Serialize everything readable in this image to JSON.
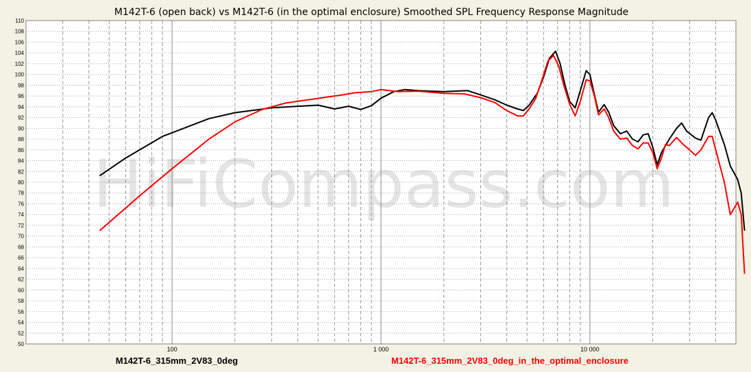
{
  "chart_data": {
    "type": "line",
    "title": "M142T-6 (open back)  vs  M142T-6 (in the optimal enclosure)     Smoothed SPL Frequency Response Magnitude",
    "watermark": "HiFiCompass.com",
    "xscale": "log",
    "xlim": [
      20,
      50000
    ],
    "ylim": [
      50,
      110
    ],
    "yticks": [
      50,
      52,
      54,
      56,
      58,
      60,
      62,
      64,
      66,
      68,
      70,
      72,
      74,
      76,
      78,
      80,
      82,
      84,
      86,
      88,
      90,
      92,
      94,
      96,
      98,
      100,
      102,
      104,
      106,
      108,
      110
    ],
    "xtick_labels": [
      {
        "value": 100,
        "label": "100"
      },
      {
        "value": 1000,
        "label": "1 000"
      },
      {
        "value": 10000,
        "label": "10 000"
      }
    ],
    "grid": true,
    "legend_position": "bottom",
    "series": [
      {
        "name": "M142T-6_315mm_2V83_0deg",
        "color": "#000000",
        "points": [
          [
            45,
            81.2
          ],
          [
            60,
            84.5
          ],
          [
            90,
            88.5
          ],
          [
            150,
            91.8
          ],
          [
            200,
            92.9
          ],
          [
            300,
            93.8
          ],
          [
            400,
            94.1
          ],
          [
            500,
            94.3
          ],
          [
            600,
            93.6
          ],
          [
            700,
            94.1
          ],
          [
            800,
            93.5
          ],
          [
            900,
            94.2
          ],
          [
            1000,
            95.6
          ],
          [
            1150,
            96.8
          ],
          [
            1300,
            97.2
          ],
          [
            1500,
            97.0
          ],
          [
            2000,
            96.8
          ],
          [
            2600,
            97.0
          ],
          [
            3000,
            96.2
          ],
          [
            3500,
            95.3
          ],
          [
            4000,
            94.3
          ],
          [
            4500,
            93.6
          ],
          [
            4800,
            93.3
          ],
          [
            5100,
            94.2
          ],
          [
            5600,
            96.5
          ],
          [
            6000,
            99.5
          ],
          [
            6400,
            103.0
          ],
          [
            6850,
            104.3
          ],
          [
            7200,
            102.0
          ],
          [
            7600,
            98.0
          ],
          [
            8000,
            95.0
          ],
          [
            8500,
            93.8
          ],
          [
            9000,
            97.0
          ],
          [
            9600,
            100.7
          ],
          [
            10000,
            100.0
          ],
          [
            10400,
            97.0
          ],
          [
            11000,
            93.0
          ],
          [
            11700,
            94.4
          ],
          [
            12300,
            93.0
          ],
          [
            13000,
            90.5
          ],
          [
            14000,
            89.0
          ],
          [
            15000,
            89.5
          ],
          [
            16000,
            88.0
          ],
          [
            17000,
            87.5
          ],
          [
            18000,
            88.8
          ],
          [
            19000,
            89.0
          ],
          [
            20000,
            86.5
          ],
          [
            21000,
            83.2
          ],
          [
            22000,
            85.5
          ],
          [
            24000,
            88.0
          ],
          [
            26000,
            90.0
          ],
          [
            27500,
            91.0
          ],
          [
            29000,
            89.5
          ],
          [
            32000,
            88.2
          ],
          [
            34000,
            87.8
          ],
          [
            37000,
            92.0
          ],
          [
            38500,
            92.9
          ],
          [
            40000,
            91.5
          ],
          [
            44000,
            87.0
          ],
          [
            47000,
            83.0
          ],
          [
            51000,
            80.5
          ],
          [
            53000,
            78.0
          ],
          [
            55000,
            71.0
          ]
        ]
      },
      {
        "name": "M142T-6_315mm_2V83_0deg_in_the_optimal_enclosure",
        "color": "#ff0000",
        "points": [
          [
            45,
            71.0
          ],
          [
            70,
            77.5
          ],
          [
            100,
            82.5
          ],
          [
            150,
            88.0
          ],
          [
            200,
            91.2
          ],
          [
            270,
            93.5
          ],
          [
            350,
            94.7
          ],
          [
            450,
            95.3
          ],
          [
            550,
            95.8
          ],
          [
            650,
            96.2
          ],
          [
            750,
            96.6
          ],
          [
            900,
            96.8
          ],
          [
            1000,
            97.2
          ],
          [
            1200,
            96.8
          ],
          [
            1500,
            96.9
          ],
          [
            2000,
            96.5
          ],
          [
            2500,
            96.4
          ],
          [
            3000,
            95.7
          ],
          [
            3500,
            94.8
          ],
          [
            4000,
            93.3
          ],
          [
            4500,
            92.3
          ],
          [
            4800,
            92.3
          ],
          [
            5100,
            93.5
          ],
          [
            5500,
            95.5
          ],
          [
            5900,
            99.0
          ],
          [
            6300,
            102.5
          ],
          [
            6700,
            103.5
          ],
          [
            7100,
            101.5
          ],
          [
            7500,
            98.0
          ],
          [
            8000,
            94.5
          ],
          [
            8500,
            92.3
          ],
          [
            9000,
            95.0
          ],
          [
            9600,
            99.0
          ],
          [
            10000,
            98.8
          ],
          [
            10500,
            96.0
          ],
          [
            11000,
            92.5
          ],
          [
            11700,
            93.6
          ],
          [
            12300,
            92.0
          ],
          [
            13000,
            89.5
          ],
          [
            14000,
            88.0
          ],
          [
            15000,
            88.2
          ],
          [
            16000,
            86.8
          ],
          [
            17000,
            86.2
          ],
          [
            18000,
            87.3
          ],
          [
            19000,
            87.3
          ],
          [
            20000,
            85.5
          ],
          [
            21000,
            82.5
          ],
          [
            22000,
            84.5
          ],
          [
            23000,
            87.0
          ],
          [
            24000,
            86.8
          ],
          [
            26000,
            88.3
          ],
          [
            28000,
            87.0
          ],
          [
            30000,
            86.0
          ],
          [
            32000,
            85.0
          ],
          [
            34000,
            86.0
          ],
          [
            37000,
            88.5
          ],
          [
            38500,
            88.5
          ],
          [
            40000,
            86.0
          ],
          [
            44000,
            80.0
          ],
          [
            47000,
            74.0
          ],
          [
            51000,
            76.3
          ],
          [
            53000,
            74.0
          ],
          [
            55000,
            63.0
          ]
        ]
      }
    ]
  }
}
